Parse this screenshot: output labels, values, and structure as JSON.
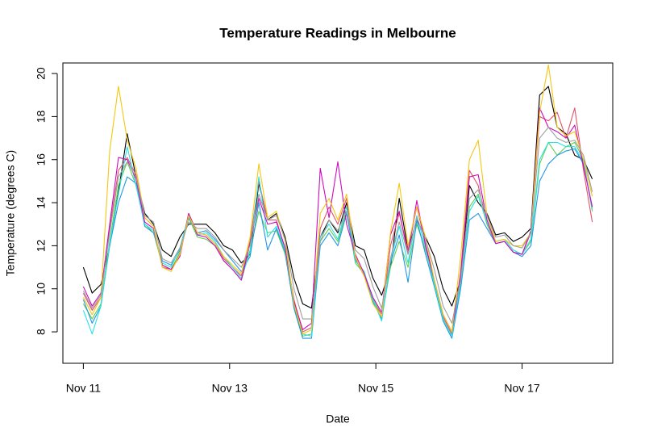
{
  "chart_data": {
    "type": "line",
    "title": "Temperature Readings in Melbourne",
    "xlabel": "Date",
    "ylabel": "Temperature (degrees C)",
    "x": [
      11,
      11.12,
      11.24,
      11.36,
      11.48,
      11.6,
      11.72,
      11.84,
      11.96,
      12.08,
      12.2,
      12.32,
      12.44,
      12.56,
      12.68,
      12.8,
      12.92,
      13.04,
      13.16,
      13.28,
      13.4,
      13.52,
      13.64,
      13.76,
      13.88,
      14,
      14.12,
      14.24,
      14.36,
      14.48,
      14.6,
      14.72,
      14.84,
      14.96,
      15.08,
      15.2,
      15.32,
      15.44,
      15.56,
      15.68,
      15.8,
      15.92,
      16.04,
      16.16,
      16.28,
      16.4,
      16.52,
      16.64,
      16.76,
      16.88,
      17,
      17.12,
      17.24,
      17.36,
      17.48,
      17.6,
      17.72,
      17.84,
      17.96
    ],
    "series": [
      {
        "color": "#000000",
        "values": [
          11.0,
          9.8,
          10.2,
          12.0,
          14.5,
          17.2,
          15.2,
          13.5,
          13.0,
          11.8,
          11.5,
          12.4,
          13.0,
          13.0,
          13.0,
          12.6,
          12.0,
          11.8,
          11.2,
          11.6,
          14.9,
          13.2,
          13.5,
          12.4,
          10.5,
          9.3,
          9.1,
          12.4,
          13.2,
          12.6,
          14.0,
          12.0,
          11.8,
          10.5,
          9.7,
          11.0,
          14.2,
          11.8,
          13.2,
          12.4,
          11.5,
          10.0,
          9.2,
          10.4,
          14.8,
          14.0,
          13.5,
          12.5,
          12.6,
          12.2,
          12.4,
          12.8,
          19.0,
          19.4,
          17.5,
          17.2,
          16.2,
          16.0,
          15.1
        ]
      },
      {
        "color": "#DF536B",
        "values": [
          9.8,
          9.0,
          9.6,
          12.8,
          15.5,
          16.1,
          15.3,
          13.3,
          12.9,
          11.0,
          10.9,
          11.6,
          13.5,
          12.6,
          12.5,
          12.1,
          11.4,
          11.0,
          10.6,
          12.2,
          15.0,
          13.2,
          13.2,
          11.8,
          9.5,
          8.0,
          8.2,
          12.8,
          13.8,
          13.0,
          14.2,
          11.4,
          10.6,
          9.5,
          8.8,
          12.0,
          13.5,
          11.8,
          13.8,
          12.1,
          10.3,
          8.7,
          7.9,
          10.8,
          15.5,
          14.8,
          13.0,
          12.1,
          12.2,
          11.7,
          11.6,
          12.6,
          18.0,
          17.8,
          18.2,
          17.0,
          18.4,
          15.5,
          13.1
        ]
      },
      {
        "color": "#61D04F",
        "values": [
          9.3,
          8.6,
          9.3,
          12.2,
          14.8,
          15.9,
          14.8,
          13.0,
          12.6,
          11.1,
          10.9,
          11.7,
          13.3,
          12.4,
          12.3,
          12.0,
          11.3,
          10.9,
          10.4,
          11.8,
          13.6,
          12.6,
          12.7,
          11.6,
          9.2,
          7.8,
          7.9,
          12.2,
          12.8,
          12.2,
          13.6,
          11.2,
          10.7,
          9.6,
          8.6,
          11.0,
          12.2,
          11.0,
          13.0,
          11.8,
          10.3,
          8.6,
          7.8,
          10.2,
          13.8,
          14.4,
          13.0,
          12.2,
          12.3,
          11.8,
          11.6,
          12.2,
          15.8,
          16.8,
          16.2,
          16.6,
          16.8,
          16.0,
          13.6
        ]
      },
      {
        "color": "#2297E6",
        "values": [
          9.5,
          8.4,
          9.2,
          12.0,
          14.0,
          15.2,
          14.9,
          12.9,
          12.6,
          11.3,
          11.1,
          11.8,
          13.3,
          12.6,
          12.7,
          12.3,
          11.8,
          11.3,
          10.8,
          11.5,
          14.0,
          11.8,
          12.8,
          11.7,
          9.1,
          7.7,
          7.7,
          12.0,
          12.6,
          12.0,
          13.5,
          11.3,
          10.8,
          9.4,
          8.6,
          11.2,
          12.5,
          10.3,
          13.2,
          11.6,
          10.1,
          8.5,
          7.7,
          10.0,
          13.2,
          13.5,
          12.8,
          12.1,
          12.2,
          11.7,
          11.5,
          12.0,
          15.0,
          15.8,
          16.2,
          16.4,
          16.5,
          15.8,
          13.8
        ]
      },
      {
        "color": "#28E2E5",
        "values": [
          9.0,
          7.9,
          9.2,
          12.1,
          14.4,
          16.6,
          14.8,
          13.0,
          12.7,
          11.2,
          11.0,
          11.9,
          13.4,
          12.5,
          12.6,
          12.2,
          11.5,
          11.0,
          10.5,
          11.7,
          15.2,
          12.4,
          12.9,
          11.8,
          9.3,
          7.9,
          7.8,
          12.4,
          13.0,
          12.3,
          13.8,
          11.3,
          10.8,
          9.5,
          8.5,
          11.3,
          12.9,
          11.2,
          13.4,
          11.9,
          10.2,
          8.6,
          7.8,
          10.3,
          13.6,
          14.3,
          13.1,
          12.2,
          12.3,
          11.8,
          11.6,
          12.3,
          16.0,
          16.8,
          16.8,
          16.6,
          16.6,
          15.9,
          13.7
        ]
      },
      {
        "color": "#CD0BBC",
        "values": [
          10.1,
          9.2,
          9.8,
          13.0,
          16.1,
          16.0,
          15.1,
          13.1,
          12.8,
          11.1,
          10.9,
          11.5,
          13.5,
          12.5,
          12.4,
          12.0,
          11.3,
          10.9,
          10.4,
          12.1,
          14.2,
          13.0,
          13.1,
          11.9,
          9.4,
          8.1,
          8.4,
          15.6,
          13.3,
          15.9,
          13.0,
          11.6,
          10.7,
          9.6,
          8.9,
          12.5,
          13.6,
          11.6,
          14.1,
          12.0,
          10.4,
          8.8,
          8.0,
          10.6,
          15.2,
          15.3,
          13.2,
          12.1,
          12.2,
          11.7,
          11.6,
          12.7,
          18.4,
          17.5,
          17.3,
          17.0,
          17.6,
          15.7,
          13.8
        ]
      },
      {
        "color": "#F5C710",
        "values": [
          9.6,
          8.8,
          9.6,
          16.4,
          19.4,
          16.9,
          15.6,
          13.3,
          12.9,
          11.0,
          10.8,
          11.6,
          13.4,
          12.6,
          12.5,
          12.1,
          11.5,
          11.1,
          10.7,
          12.4,
          15.8,
          13.3,
          13.6,
          12.2,
          9.3,
          7.9,
          8.1,
          13.5,
          14.2,
          13.2,
          14.4,
          11.5,
          10.6,
          9.3,
          8.7,
          12.6,
          14.9,
          12.0,
          13.8,
          12.4,
          10.4,
          8.8,
          8.0,
          11.5,
          16.0,
          16.9,
          13.4,
          12.2,
          12.3,
          12.0,
          12.0,
          12.6,
          18.2,
          20.4,
          17.5,
          17.1,
          17.3,
          16.0,
          14.3
        ]
      },
      {
        "color": "#9E9E9E",
        "values": [
          9.9,
          9.1,
          9.7,
          12.6,
          15.2,
          15.9,
          15.2,
          13.4,
          13.1,
          11.4,
          11.2,
          11.9,
          13.1,
          12.8,
          12.8,
          12.4,
          11.8,
          11.4,
          11.0,
          12.0,
          14.4,
          13.2,
          13.4,
          12.3,
          10.0,
          8.6,
          8.6,
          12.2,
          13.2,
          12.7,
          13.6,
          11.8,
          11.4,
          10.1,
          9.1,
          11.4,
          13.1,
          11.6,
          13.3,
          12.3,
          10.9,
          9.2,
          8.4,
          10.4,
          14.2,
          14.6,
          13.4,
          12.4,
          12.5,
          12.0,
          11.9,
          12.6,
          17.0,
          17.5,
          17.0,
          16.8,
          16.9,
          16.2,
          14.5
        ]
      }
    ],
    "xlim": [
      10.72,
      18.24
    ],
    "xticks": [
      {
        "value": 11,
        "label": "Nov 11"
      },
      {
        "value": 13,
        "label": "Nov 13"
      },
      {
        "value": 15,
        "label": "Nov 15"
      },
      {
        "value": 17,
        "label": "Nov 17"
      }
    ],
    "ylim": [
      6.54,
      20.49
    ],
    "yticks": [
      8,
      10,
      12,
      14,
      16,
      18,
      20
    ],
    "grid": false
  }
}
